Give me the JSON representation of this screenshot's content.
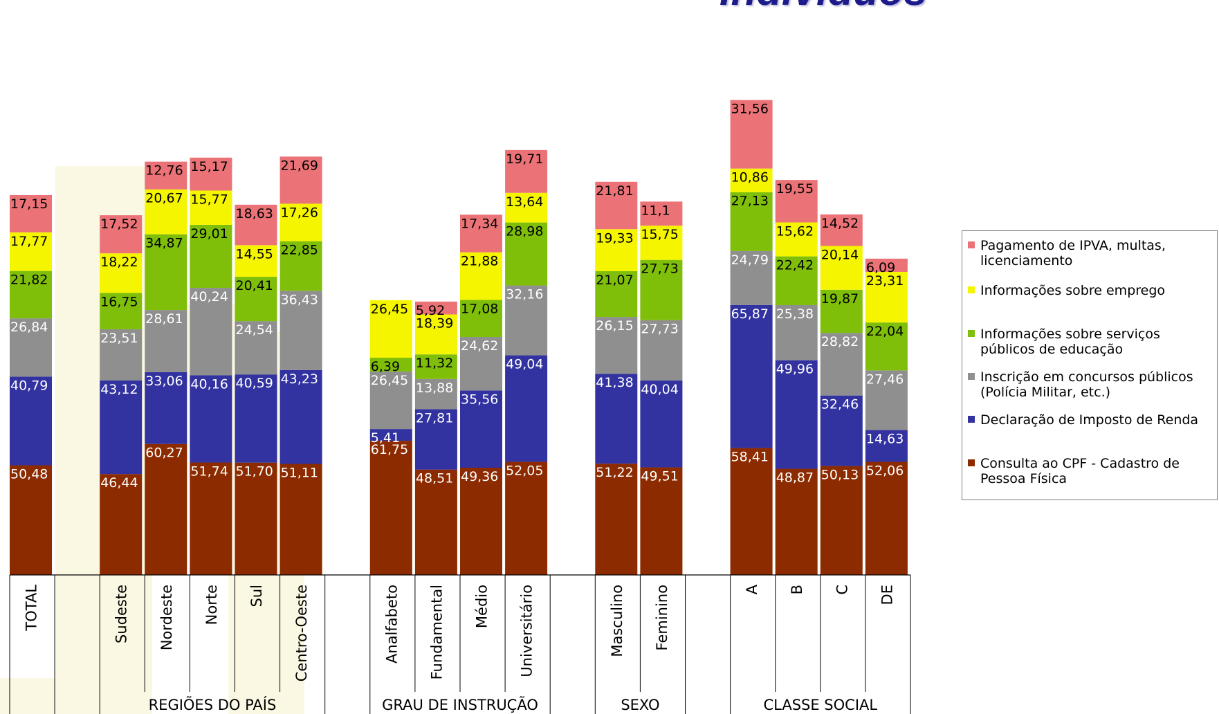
{
  "title": "Indivíduos",
  "watermark_color": "#faf7e2",
  "chart_data": {
    "type": "bar",
    "stacked": true,
    "ylim": [
      0,
      260
    ],
    "grid": false,
    "legend_position": "right",
    "categories": [
      "TOTAL",
      "",
      "Sudeste",
      "Nordeste",
      "Norte",
      "Sul",
      "Centro-Oeste",
      "",
      "Analfabeto",
      "Fundamental",
      "Médio",
      "Universitário",
      "",
      "Masculino",
      "Feminino",
      "",
      "A",
      "B",
      "C",
      "DE"
    ],
    "groups": [
      {
        "label": "",
        "categories": [
          "TOTAL"
        ]
      },
      {
        "label": "REGIÕES DO PAÍS",
        "categories": [
          "Sudeste",
          "Nordeste",
          "Norte",
          "Sul",
          "Centro-Oeste"
        ]
      },
      {
        "label": "GRAU DE INSTRUÇÃO",
        "categories": [
          "Analfabeto",
          "Fundamental",
          "Médio",
          "Universitário"
        ]
      },
      {
        "label": "SEXO",
        "categories": [
          "Masculino",
          "Feminino"
        ]
      },
      {
        "label": "CLASSE  SOCIAL",
        "categories": [
          "A",
          "B",
          "C",
          "DE"
        ]
      }
    ],
    "series": [
      {
        "name": "Consulta ao CPF - Cadastro de Pessoa Física",
        "color": "#8c2a00",
        "values": [
          50.48,
          null,
          46.44,
          60.27,
          51.74,
          51.7,
          51.11,
          null,
          61.75,
          48.51,
          49.36,
          52.05,
          null,
          51.22,
          49.51,
          null,
          58.41,
          48.87,
          50.13,
          52.06
        ],
        "labels": [
          "50,48",
          "",
          "46,44",
          "60,27",
          "51,74",
          "51,70",
          "51,11",
          "",
          "61,75",
          "48,51",
          "49,36",
          "52,05",
          "",
          "51,22",
          "49,51",
          "",
          "58,41",
          "48,87",
          "50,13",
          "52,06"
        ]
      },
      {
        "name": "Declaração de Imposto de Renda",
        "color": "#3232a0",
        "values": [
          40.79,
          null,
          43.12,
          33.06,
          40.16,
          40.59,
          43.23,
          null,
          5.41,
          27.81,
          35.56,
          49.04,
          null,
          41.38,
          40.04,
          null,
          65.87,
          49.96,
          32.46,
          14.63
        ],
        "labels": [
          "40,79",
          "",
          "43,12",
          "33,06",
          "40,16",
          "40,59",
          "43,23",
          "",
          "5,41",
          "27,81",
          "35,56",
          "49,04",
          "",
          "41,38",
          "40,04",
          "",
          "65,87",
          "49,96",
          "32,46",
          "14,63"
        ]
      },
      {
        "name": "Inscrição em concursos públicos (Polícia Militar, etc.)",
        "color": "#8f8f8f",
        "values": [
          26.84,
          null,
          23.51,
          28.61,
          40.24,
          24.54,
          36.43,
          null,
          26.45,
          13.88,
          24.62,
          32.16,
          null,
          26.15,
          27.73,
          null,
          24.79,
          25.38,
          28.82,
          27.46
        ],
        "labels": [
          "26,84",
          "",
          "23,51",
          "28,61",
          "40,24",
          "24,54",
          "36,43",
          "",
          "26,45",
          "13,88",
          "24,62",
          "32,16",
          "",
          "26,15",
          "27,73",
          "",
          "24,79",
          "25,38",
          "28,82",
          "27,46"
        ]
      },
      {
        "name": "Informações sobre serviços públicos de educação",
        "color": "#7fbf0a",
        "values": [
          21.82,
          null,
          16.75,
          34.87,
          29.01,
          20.41,
          22.85,
          null,
          6.39,
          11.32,
          17.08,
          28.98,
          null,
          21.07,
          27.73,
          null,
          27.13,
          22.42,
          19.87,
          22.04
        ],
        "labels": [
          "21,82",
          "",
          "16,75",
          "34,87",
          "29,01",
          "20,41",
          "22,85",
          "",
          "6,39",
          "11,32",
          "17,08",
          "28,98",
          "",
          "21,07",
          "27,73",
          "",
          "27,13",
          "22,42",
          "19,87",
          "22,04"
        ]
      },
      {
        "name": " Informações sobre emprego",
        "color": "#f5f500",
        "values": [
          17.77,
          null,
          18.22,
          20.67,
          15.77,
          14.55,
          17.26,
          null,
          26.45,
          18.39,
          21.88,
          13.64,
          null,
          19.33,
          15.75,
          null,
          10.86,
          15.62,
          20.14,
          23.31
        ],
        "labels": [
          "17,77",
          "",
          "18,22",
          "20,67",
          "15,77",
          "14,55",
          "17,26",
          "",
          "26,45",
          "18,39",
          "21,88",
          "13,64",
          "",
          "19,33",
          "15,75",
          "",
          "10,86",
          "15,62",
          "20,14",
          "23,31"
        ]
      },
      {
        "name": "Pagamento de IPVA, multas, licenciamento",
        "color": "#eb7377",
        "values": [
          17.15,
          null,
          17.52,
          12.76,
          15.17,
          18.63,
          21.69,
          null,
          null,
          5.92,
          17.34,
          19.71,
          null,
          21.81,
          11.1,
          null,
          31.56,
          19.55,
          14.52,
          6.09
        ],
        "labels": [
          "17,15",
          "",
          "17,52",
          "12,76",
          "15,17",
          "18,63",
          "21,69",
          "",
          "",
          "5,92",
          "17,34",
          "19,71",
          "",
          "21,81",
          "11,1",
          "",
          "31,56",
          "19,55",
          "14,52",
          "6,09"
        ]
      }
    ]
  }
}
